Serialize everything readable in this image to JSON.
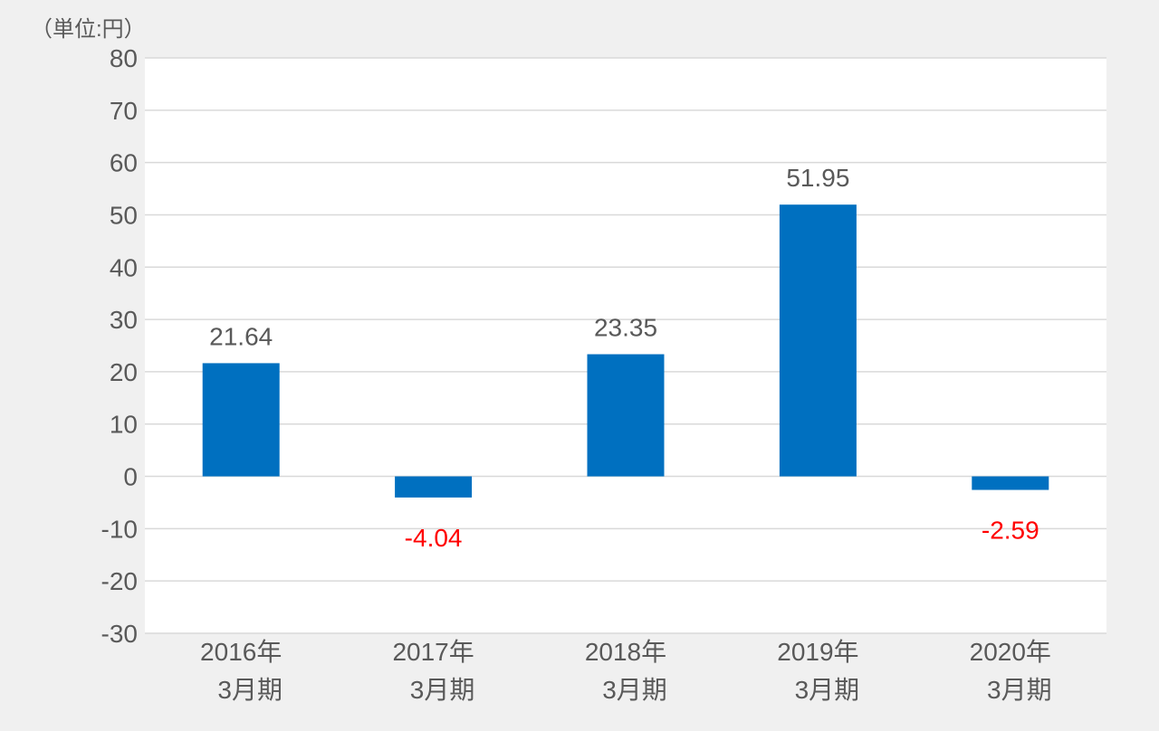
{
  "chart_data": {
    "type": "bar",
    "unit_label": "（単位:円）",
    "categories": [
      [
        "2016年",
        "3月期"
      ],
      [
        "2017年",
        "3月期"
      ],
      [
        "2018年",
        "3月期"
      ],
      [
        "2019年",
        "3月期"
      ],
      [
        "2020年",
        "3月期"
      ]
    ],
    "values": [
      21.64,
      -4.04,
      23.35,
      51.95,
      -2.59
    ],
    "value_labels": [
      "21.64",
      "-4.04",
      "23.35",
      "51.95",
      "-2.59"
    ],
    "ylim": [
      -30,
      80
    ],
    "yticks": [
      80,
      70,
      60,
      50,
      40,
      30,
      20,
      10,
      0,
      -10,
      -20,
      -30
    ],
    "grid": true,
    "colors": {
      "bar": "#0070c0",
      "positive_label": "#595959",
      "negative_label": "#ff0000",
      "axis_text": "#595959",
      "grid": "#d9d9d9",
      "plot_background": "#ffffff",
      "page_background": "#f0f0f0"
    }
  }
}
